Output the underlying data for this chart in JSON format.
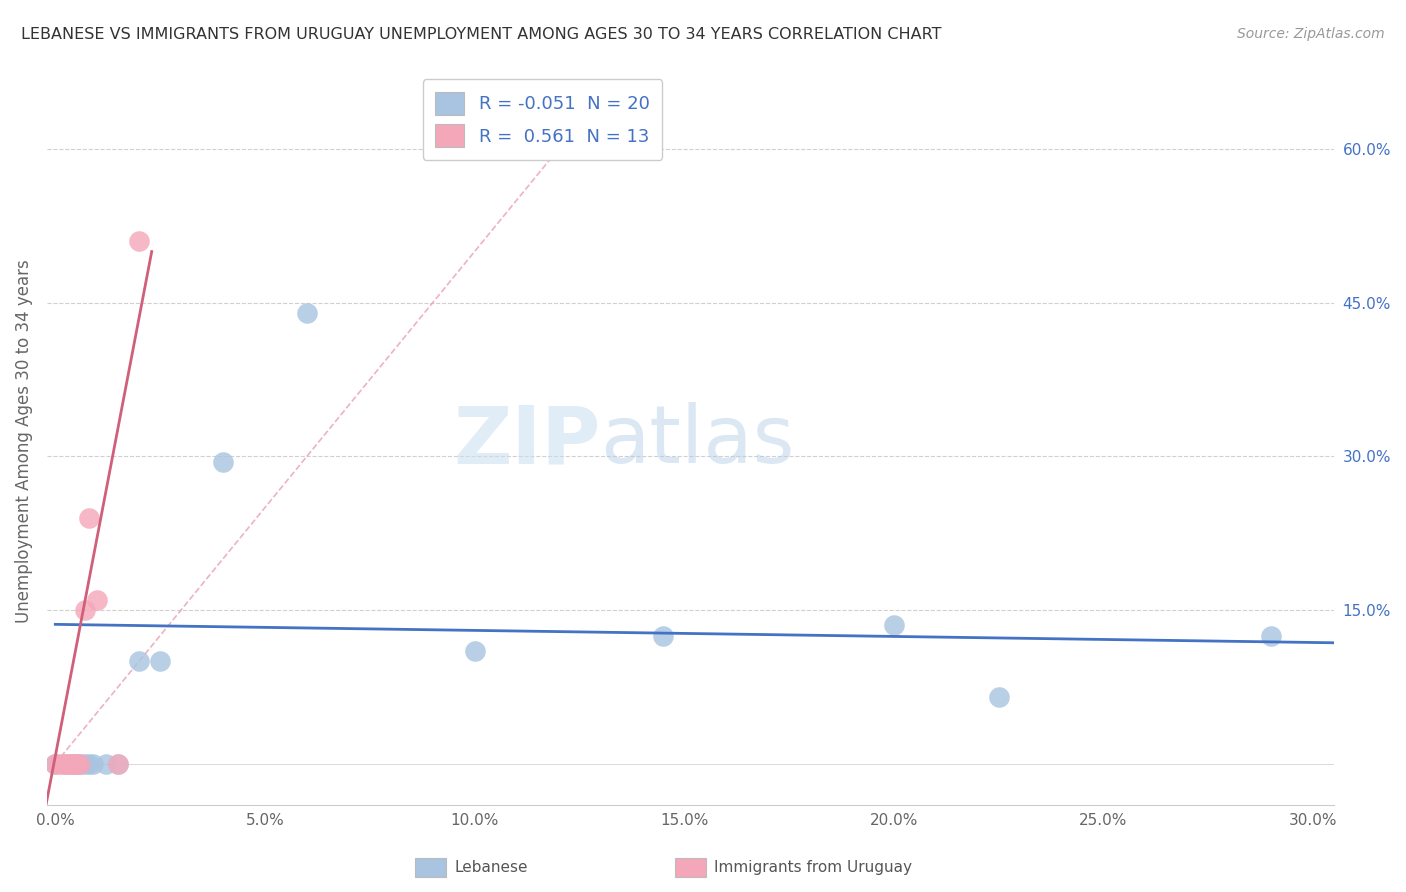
{
  "title": "LEBANESE VS IMMIGRANTS FROM URUGUAY UNEMPLOYMENT AMONG AGES 30 TO 34 YEARS CORRELATION CHART",
  "source": "Source: ZipAtlas.com",
  "ylabel": "Unemployment Among Ages 30 to 34 years",
  "xlim": [
    -0.002,
    0.305
  ],
  "ylim": [
    -0.04,
    0.67
  ],
  "x_tick_labels": [
    "0.0%",
    "5.0%",
    "10.0%",
    "15.0%",
    "20.0%",
    "25.0%",
    "30.0%"
  ],
  "x_tick_values": [
    0.0,
    0.05,
    0.1,
    0.15,
    0.2,
    0.25,
    0.3
  ],
  "y_tick_labels": [
    "15.0%",
    "30.0%",
    "45.0%",
    "60.0%"
  ],
  "y_tick_values": [
    0.15,
    0.3,
    0.45,
    0.6
  ],
  "watermark_zip": "ZIP",
  "watermark_atlas": "atlas",
  "legend_labels": [
    "Lebanese",
    "Immigrants from Uruguay"
  ],
  "blue_R": "-0.051",
  "blue_N": "20",
  "pink_R": "0.561",
  "pink_N": "13",
  "blue_color": "#a8c4e0",
  "pink_color": "#f4a7b9",
  "blue_line_color": "#4472c4",
  "pink_line_color": "#d0607a",
  "pink_dash_color": "#e8a0b0",
  "blue_scatter": [
    [
      0.0,
      0.0
    ],
    [
      0.002,
      0.0
    ],
    [
      0.003,
      0.0
    ],
    [
      0.004,
      0.0
    ],
    [
      0.005,
      0.0
    ],
    [
      0.006,
      0.0
    ],
    [
      0.007,
      0.0
    ],
    [
      0.008,
      0.0
    ],
    [
      0.009,
      0.0
    ],
    [
      0.012,
      0.0
    ],
    [
      0.015,
      0.0
    ],
    [
      0.02,
      0.1
    ],
    [
      0.025,
      0.1
    ],
    [
      0.04,
      0.295
    ],
    [
      0.06,
      0.44
    ],
    [
      0.1,
      0.11
    ],
    [
      0.145,
      0.125
    ],
    [
      0.2,
      0.135
    ],
    [
      0.225,
      0.065
    ],
    [
      0.29,
      0.125
    ]
  ],
  "pink_scatter": [
    [
      0.0,
      0.0
    ],
    [
      0.001,
      0.0
    ],
    [
      0.002,
      0.0
    ],
    [
      0.003,
      0.0
    ],
    [
      0.004,
      0.0
    ],
    [
      0.005,
      0.0
    ],
    [
      0.005,
      0.0
    ],
    [
      0.006,
      0.0
    ],
    [
      0.007,
      0.15
    ],
    [
      0.008,
      0.24
    ],
    [
      0.01,
      0.16
    ],
    [
      0.015,
      0.0
    ],
    [
      0.02,
      0.51
    ]
  ],
  "blue_regression": [
    -0.051,
    0.14
  ],
  "pink_regression": [
    0.561,
    0.08
  ],
  "blue_line_endpoints": [
    [
      0.0,
      0.136
    ],
    [
      0.305,
      0.118
    ]
  ],
  "pink_line_endpoints": [
    [
      -0.005,
      -0.1
    ],
    [
      0.023,
      0.5
    ]
  ],
  "pink_dash_endpoints": [
    [
      0.0,
      0.0
    ],
    [
      0.13,
      0.65
    ]
  ]
}
